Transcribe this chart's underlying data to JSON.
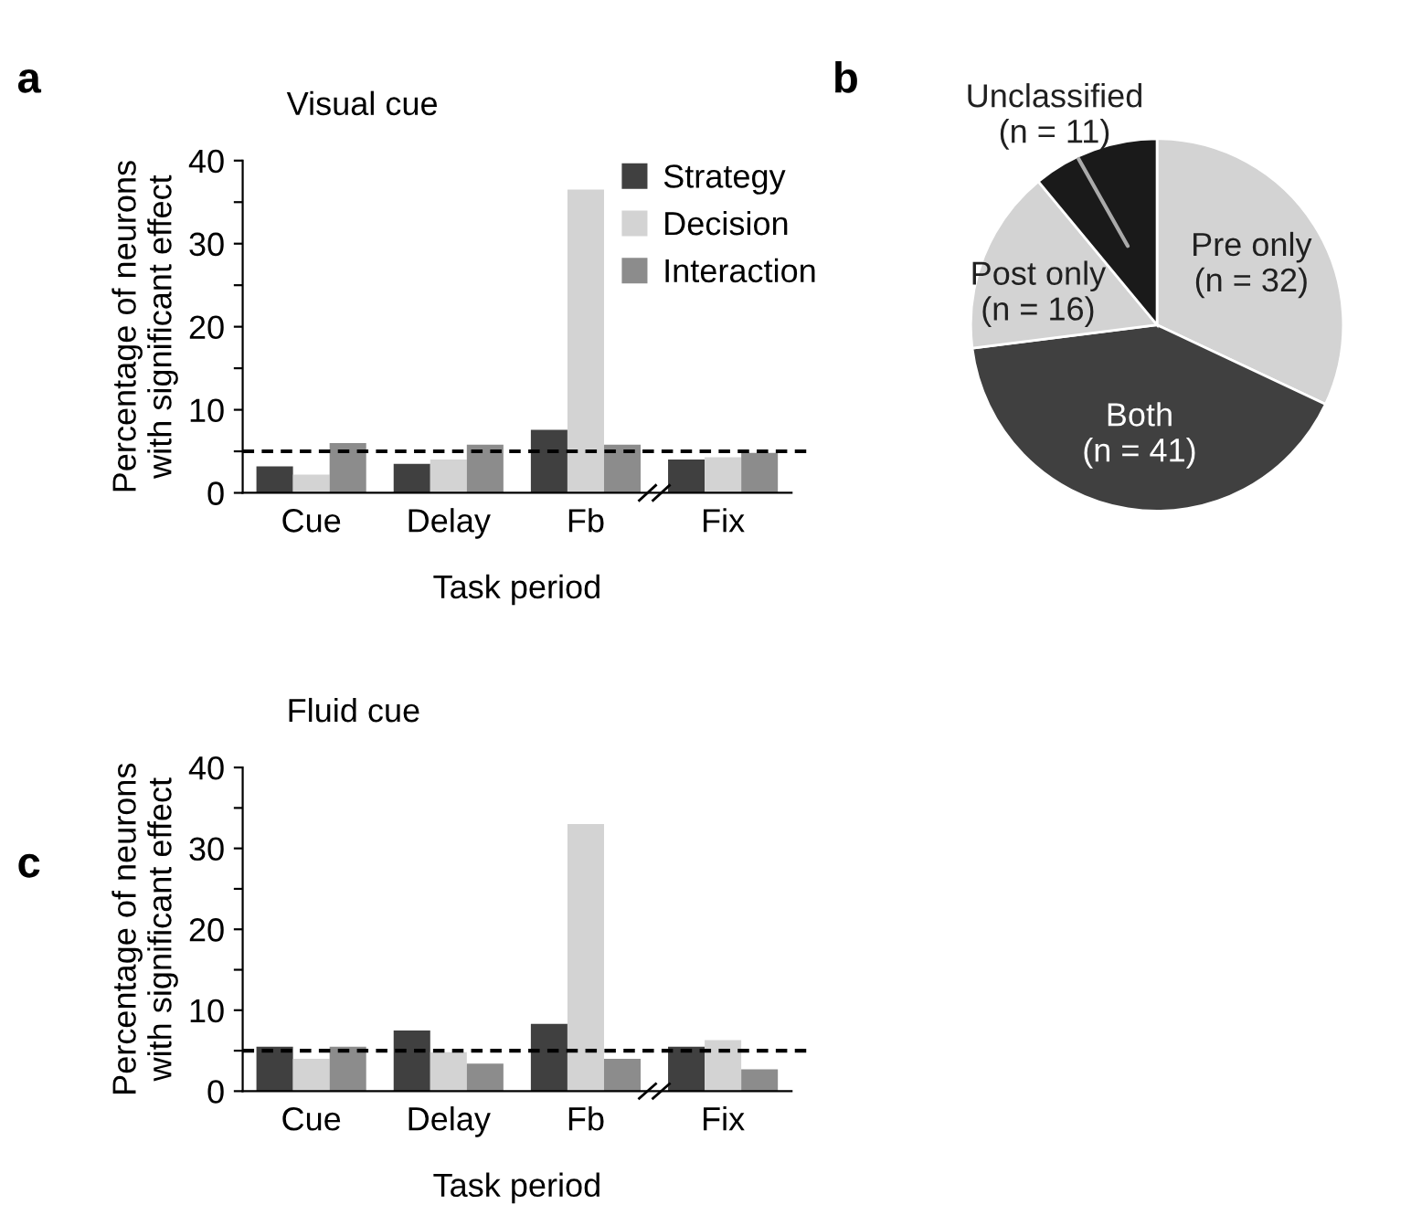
{
  "chart_data": [
    {
      "type": "bar",
      "title": "Visual cue",
      "xlabel": "Task period",
      "ylabel": "Percentage of neurons\nwith significant effect",
      "annotations": [
        "a"
      ],
      "categories": [
        "Cue",
        "Delay",
        "Fb",
        "Fix"
      ],
      "series": [
        {
          "name": "Strategy",
          "color": "#404040",
          "values": [
            3.2,
            3.5,
            7.6,
            4.0
          ]
        },
        {
          "name": "Decision",
          "color": "#d3d3d3",
          "values": [
            2.2,
            4.0,
            36.5,
            4.3
          ]
        },
        {
          "name": "Interaction",
          "color": "#8c8c8c",
          "values": [
            6.0,
            5.8,
            5.8,
            4.8
          ]
        }
      ],
      "ylim": [
        0,
        40
      ],
      "yticks": [
        0,
        {
          "value": 5,
          "label": null
        },
        10,
        {
          "value": 15,
          "label": null
        },
        20,
        {
          "value": 25,
          "label": null
        },
        30,
        {
          "value": 35,
          "label": null
        },
        40
      ],
      "ref_lines": [
        {
          "axis": "y",
          "value": 5,
          "label": null,
          "color": "#000000",
          "line_style": "dashed"
        }
      ],
      "legend": "top right",
      "grid": false
    },
    {
      "type": "pie",
      "annotations": [
        "b"
      ],
      "categories": [
        "Pre only",
        "Both",
        "Post only",
        "Unclassified"
      ],
      "values": [
        32,
        41,
        16,
        11
      ],
      "value_labels": [
        "(n = 32)",
        "(n = 41)",
        "(n = 16)",
        "(n = 11)"
      ],
      "colors": [
        "#d3d3d3",
        "#404040",
        "#d3d3d3",
        "#1a1a1a"
      ]
    },
    {
      "type": "bar",
      "title": "Fluid cue",
      "xlabel": "Task period",
      "ylabel": "Percentage of neurons\nwith significant effect",
      "annotations": [
        "c"
      ],
      "categories": [
        "Cue",
        "Delay",
        "Fb",
        "Fix"
      ],
      "series": [
        {
          "color": "#404040",
          "values": [
            5.5,
            7.5,
            8.3,
            5.5
          ]
        },
        {
          "color": "#d3d3d3",
          "values": [
            4.0,
            4.8,
            33.0,
            6.3
          ]
        },
        {
          "color": "#8c8c8c",
          "values": [
            5.5,
            3.4,
            4.0,
            2.7
          ]
        }
      ],
      "ylim": [
        0,
        40
      ],
      "yticks": [
        0,
        {
          "value": 5,
          "label": null
        },
        10,
        {
          "value": 15,
          "label": null
        },
        20,
        {
          "value": 25,
          "label": null
        },
        30,
        {
          "value": 35,
          "label": null
        },
        40
      ],
      "ref_lines": [
        {
          "axis": "y",
          "value": 5,
          "label": null,
          "color": "#000000",
          "line_style": "dashed"
        }
      ],
      "legend": false,
      "grid": false
    }
  ]
}
